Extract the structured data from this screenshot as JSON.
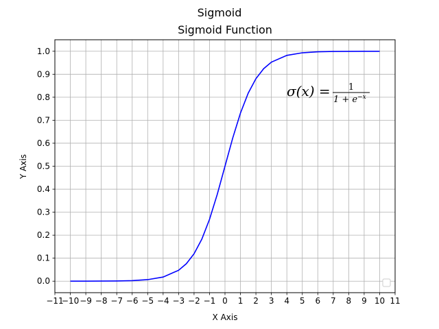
{
  "figure": {
    "suptitle": "Sigmoid"
  },
  "chart_data": {
    "type": "line",
    "title": "Sigmoid Function",
    "xlabel": "X Axis",
    "ylabel": "Y Axis",
    "xlim": [
      -11,
      11
    ],
    "ylim": [
      -0.05,
      1.05
    ],
    "xticks": [
      -11,
      -10,
      -9,
      -8,
      -7,
      -6,
      -5,
      -4,
      -3,
      -2,
      -1,
      0,
      1,
      2,
      3,
      4,
      5,
      6,
      7,
      8,
      9,
      10,
      11
    ],
    "yticks": [
      0.0,
      0.1,
      0.2,
      0.3,
      0.4,
      0.5,
      0.6,
      0.7,
      0.8,
      0.9,
      1.0
    ],
    "xtick_labels": [
      "−11",
      "−10",
      "−9",
      "−8",
      "−7",
      "−6",
      "−5",
      "−4",
      "−3",
      "−2",
      "−1",
      "0",
      "1",
      "2",
      "3",
      "4",
      "5",
      "6",
      "7",
      "8",
      "9",
      "10",
      "11"
    ],
    "ytick_labels": [
      "0.0",
      "0.1",
      "0.2",
      "0.3",
      "0.4",
      "0.5",
      "0.6",
      "0.7",
      "0.8",
      "0.9",
      "1.0"
    ],
    "grid": true,
    "legend": {
      "placement": "lower-right",
      "entries": []
    },
    "series": [
      {
        "color": "#0000ff",
        "x": [
          -10,
          -9,
          -8,
          -7,
          -6,
          -5,
          -4,
          -3,
          -2.5,
          -2,
          -1.5,
          -1,
          -0.5,
          0,
          0.5,
          1,
          1.5,
          2,
          2.5,
          3,
          4,
          5,
          6,
          7,
          8,
          9,
          10
        ],
        "y": [
          4.54e-05,
          0.0001234,
          0.000335,
          0.000911,
          0.002473,
          0.006693,
          0.017986,
          0.047426,
          0.075858,
          0.119203,
          0.182426,
          0.268941,
          0.377541,
          0.5,
          0.622459,
          0.731059,
          0.817574,
          0.880797,
          0.924142,
          0.952574,
          0.982014,
          0.993307,
          0.997527,
          0.999089,
          0.999665,
          0.999877,
          0.999955
        ]
      }
    ],
    "annotation": {
      "lhs": "σ(x) = ",
      "numerator": "1",
      "denominator_base": "1 + e",
      "denominator_exp": "−x",
      "x": 4,
      "y": 0.8
    }
  }
}
